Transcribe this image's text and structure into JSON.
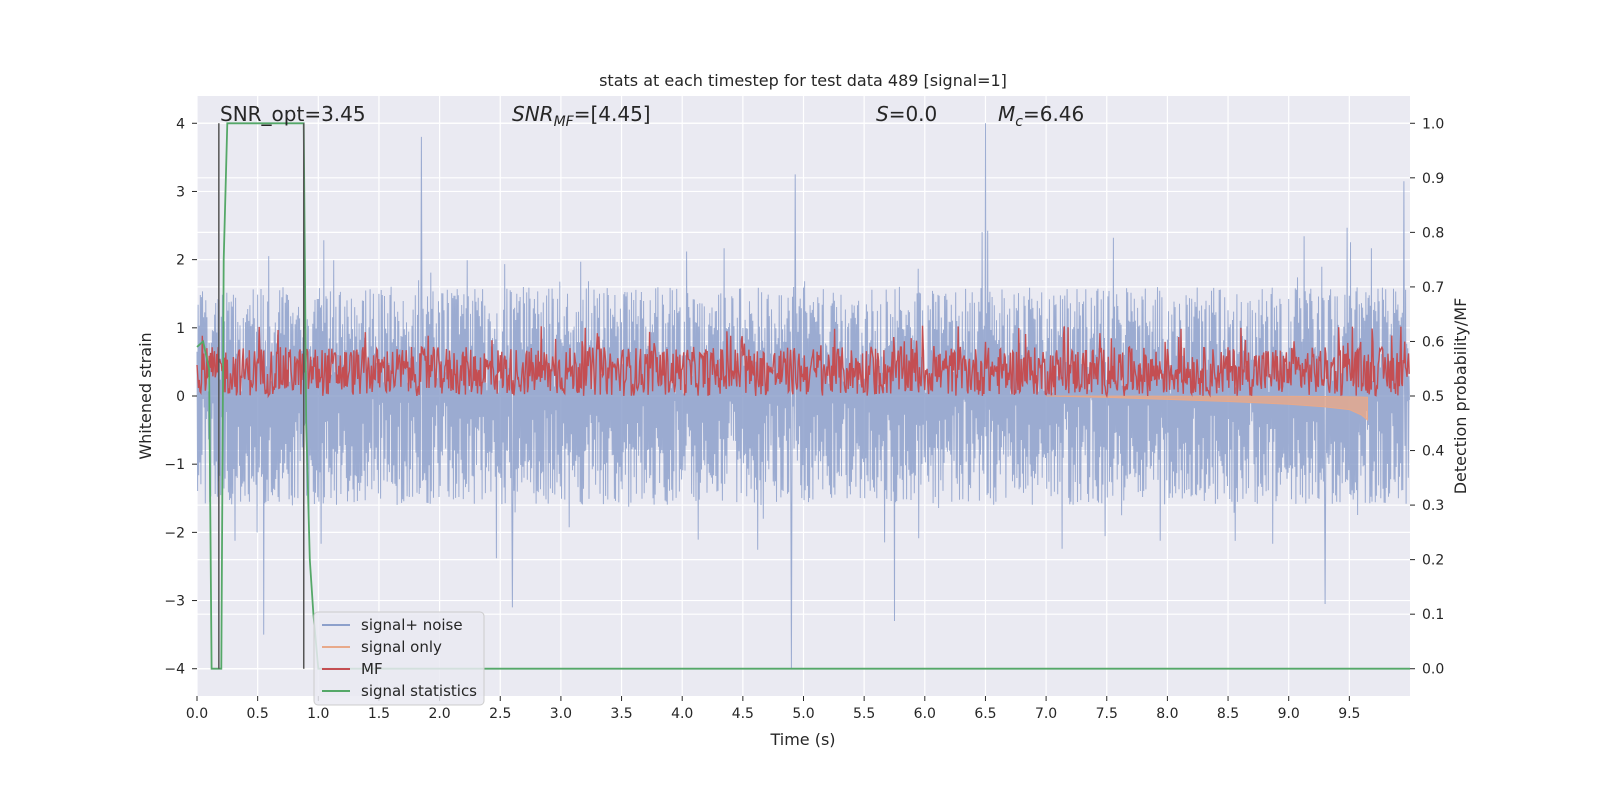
{
  "chart_data": {
    "type": "line",
    "title": "stats at each timestep for test data 489 [signal=1]",
    "xlabel": "Time (s)",
    "ylabel_left": "Whitened strain",
    "ylabel_right": "Detection probability/MF",
    "xlim": [
      0,
      10
    ],
    "ylim_left": [
      -4.4,
      4.4
    ],
    "ylim_right": [
      -0.05,
      1.05
    ],
    "x_ticks": [
      "0.0",
      "0.5",
      "1.0",
      "1.5",
      "2.0",
      "2.5",
      "3.0",
      "3.5",
      "4.0",
      "4.5",
      "5.0",
      "5.5",
      "6.0",
      "6.5",
      "7.0",
      "7.5",
      "8.0",
      "8.5",
      "9.0",
      "9.5"
    ],
    "x_tick_values": [
      0,
      0.5,
      1,
      1.5,
      2,
      2.5,
      3,
      3.5,
      4,
      4.5,
      5,
      5.5,
      6,
      6.5,
      7,
      7.5,
      8,
      8.5,
      9,
      9.5
    ],
    "y_left_ticks": [
      "4",
      "3",
      "2",
      "1",
      "0",
      "−1",
      "−2",
      "−3",
      "−4"
    ],
    "y_left_tick_values": [
      4,
      3,
      2,
      1,
      0,
      -1,
      -2,
      -3,
      -4
    ],
    "y_right_ticks": [
      "1.0",
      "0.9",
      "0.8",
      "0.7",
      "0.6",
      "0.5",
      "0.4",
      "0.3",
      "0.2",
      "0.1",
      "0.0"
    ],
    "y_right_tick_values": [
      1.0,
      0.9,
      0.8,
      0.7,
      0.6,
      0.5,
      0.4,
      0.3,
      0.2,
      0.1,
      0.0
    ],
    "grid": true,
    "legend_placement": "lower-left",
    "annotations": {
      "snr_opt": "SNR_opt=3.45",
      "snr_mf_sym": "SNR",
      "snr_mf_sub": "MF",
      "snr_mf_val": "=[4.45]",
      "s_sym": "S",
      "s_val": "=0.0",
      "mc_sym": "M",
      "mc_sub": "c",
      "mc_val": "=6.46"
    },
    "series": [
      {
        "name": "signal+ noise",
        "color": "#8da0cb",
        "axis": "left",
        "description_values": "noise band roughly -1.6..1.6 with spikes up to 4.0 (t=6.5) and down to -4.0 (t=4.9)",
        "spikes": [
          [
            0.55,
            -3.5
          ],
          [
            1.85,
            3.8
          ],
          [
            2.6,
            -3.1
          ],
          [
            4.93,
            3.25
          ],
          [
            4.9,
            -4.0
          ],
          [
            5.75,
            -3.3
          ],
          [
            6.5,
            4.0
          ],
          [
            9.95,
            3.15
          ],
          [
            9.3,
            -3.05
          ]
        ]
      },
      {
        "name": "signal only",
        "color": "#e8a98a",
        "axis": "left",
        "x": [
          7.0,
          7.5,
          8.0,
          8.5,
          9.0,
          9.3,
          9.5,
          9.6,
          9.65
        ],
        "y": [
          0.0,
          -0.02,
          -0.05,
          -0.08,
          -0.12,
          -0.16,
          -0.2,
          -0.28,
          -0.35
        ]
      },
      {
        "name": "MF",
        "color": "#c44e52",
        "axis": "right",
        "band": [
          0.5,
          0.59
        ]
      },
      {
        "name": "signal statistics",
        "color": "#55a868",
        "axis": "right",
        "x": [
          0.0,
          0.05,
          0.1,
          0.12,
          0.16,
          0.2,
          0.22,
          0.25,
          0.3,
          0.4,
          0.5,
          0.6,
          0.7,
          0.8,
          0.86,
          0.88,
          0.9,
          0.93,
          0.96,
          1.0,
          2.0,
          4.0,
          6.0,
          8.0,
          10.0
        ],
        "y": [
          0.59,
          0.6,
          0.55,
          0.0,
          0.0,
          0.0,
          0.75,
          1.0,
          1.0,
          1.0,
          1.0,
          1.0,
          1.0,
          1.0,
          1.0,
          1.0,
          0.45,
          0.2,
          0.1,
          0.0,
          0.0,
          0.0,
          0.0,
          0.0,
          0.0
        ]
      }
    ],
    "vertical_lines": [
      0.18,
      0.88
    ]
  }
}
